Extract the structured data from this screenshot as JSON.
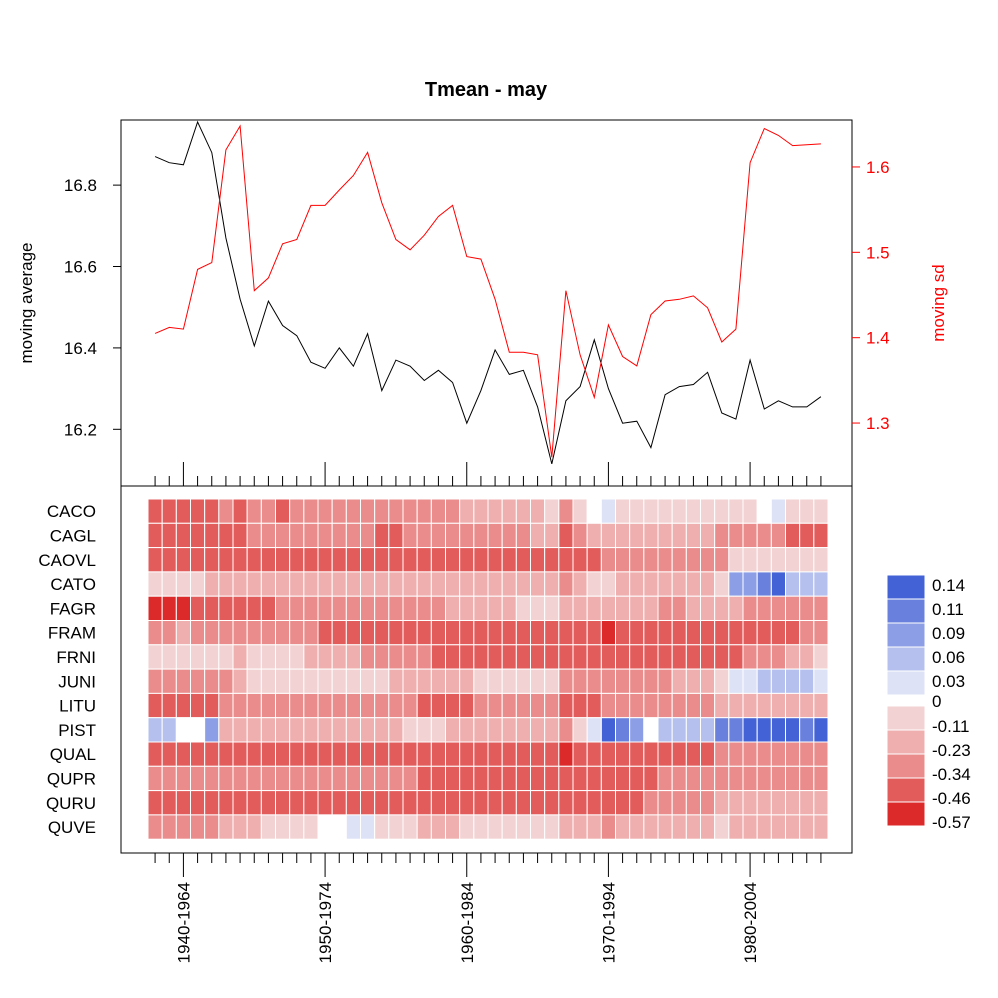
{
  "title": "Tmean - may",
  "colors": {
    "line_mean": "#000000",
    "line_sd": "#ff0000",
    "text_sd": "#ff0000",
    "cell_border": "#ffffff",
    "neg_scale": [
      "#f2d2d2",
      "#efafaf",
      "#ea8c8c",
      "#e35c5c",
      "#dc2a2a"
    ],
    "pos_scale": [
      "#dde2f6",
      "#b5c0ee",
      "#8c9ee5",
      "#6a80dd",
      "#4262d6"
    ],
    "zero": "#ffffff"
  },
  "chart_data": {
    "type": "line+heatmap",
    "top_panel": {
      "type": "line",
      "ylabel_left": "moving average",
      "ylabel_right": "moving sd",
      "ylim_left": [
        16.1,
        16.96
      ],
      "ylim_right": [
        1.245,
        1.655
      ],
      "yticks_left": [
        "16.2",
        "16.4",
        "16.6",
        "16.8"
      ],
      "yticks_right": [
        "1.3",
        "1.4",
        "1.5",
        "1.6"
      ],
      "series": [
        {
          "name": "moving average",
          "axis": "left",
          "values": [
            16.87,
            16.855,
            16.85,
            16.955,
            16.88,
            16.67,
            16.52,
            16.405,
            16.515,
            16.455,
            16.43,
            16.365,
            16.35,
            16.4,
            16.355,
            16.435,
            16.295,
            16.37,
            16.355,
            16.32,
            16.345,
            16.315,
            16.215,
            16.295,
            16.395,
            16.335,
            16.345,
            16.255,
            16.115,
            16.27,
            16.305,
            16.42,
            16.3,
            16.215,
            16.22,
            16.155,
            16.285,
            16.305,
            16.31,
            16.34,
            16.24,
            16.225,
            16.37,
            16.25,
            16.27,
            16.255,
            16.255,
            16.28
          ]
        },
        {
          "name": "moving sd",
          "axis": "right",
          "values": [
            1.405,
            1.412,
            1.41,
            1.48,
            1.488,
            1.62,
            1.648,
            1.455,
            1.47,
            1.51,
            1.515,
            1.555,
            1.555,
            1.573,
            1.59,
            1.617,
            1.558,
            1.515,
            1.503,
            1.52,
            1.542,
            1.555,
            1.495,
            1.492,
            1.445,
            1.383,
            1.383,
            1.38,
            1.26,
            1.455,
            1.38,
            1.33,
            1.415,
            1.378,
            1.367,
            1.427,
            1.443,
            1.445,
            1.449,
            1.435,
            1.395,
            1.41,
            1.605,
            1.645,
            1.637,
            1.625,
            1.626,
            1.627
          ]
        }
      ]
    },
    "heatmap": {
      "rows": [
        "CACO",
        "CAGL",
        "CAOVL",
        "CATO",
        "FAGR",
        "FRAM",
        "FRNI",
        "JUNI",
        "LITU",
        "PIST",
        "QUAL",
        "QUPR",
        "QURU",
        "QUVE"
      ],
      "n_windows": 48,
      "x_labels": [
        "1940-1964",
        "1950-1974",
        "1960-1984",
        "1970-1994",
        "1980-2004"
      ],
      "x_label_windows": [
        2,
        12,
        22,
        32,
        42
      ],
      "legend_labels": [
        "0.14",
        "0.11",
        "0.09",
        "0.06",
        "0.03",
        "0",
        "-0.11",
        "-0.23",
        "-0.34",
        "-0.46",
        "-0.57"
      ],
      "values": [
        [
          -0.4,
          -0.4,
          -0.4,
          -0.4,
          -0.35,
          -0.3,
          -0.35,
          -0.3,
          -0.3,
          -0.35,
          -0.3,
          -0.25,
          -0.25,
          -0.3,
          -0.3,
          -0.25,
          -0.25,
          -0.3,
          -0.3,
          -0.3,
          -0.25,
          -0.25,
          -0.2,
          -0.2,
          -0.2,
          -0.15,
          -0.15,
          -0.12,
          -0.1,
          -0.28,
          -0.1,
          0.0,
          0.02,
          -0.08,
          -0.1,
          -0.1,
          -0.1,
          -0.1,
          -0.08,
          -0.08,
          -0.1,
          -0.05,
          -0.03,
          0.0,
          0.01,
          -0.04,
          -0.06,
          -0.08
        ],
        [
          -0.4,
          -0.4,
          -0.4,
          -0.4,
          -0.35,
          -0.35,
          -0.35,
          -0.3,
          -0.3,
          -0.3,
          -0.3,
          -0.3,
          -0.3,
          -0.3,
          -0.3,
          -0.3,
          -0.35,
          -0.35,
          -0.3,
          -0.3,
          -0.3,
          -0.25,
          -0.25,
          -0.25,
          -0.3,
          -0.25,
          -0.25,
          -0.2,
          -0.2,
          -0.4,
          -0.25,
          -0.2,
          -0.2,
          -0.15,
          -0.2,
          -0.2,
          -0.2,
          -0.2,
          -0.2,
          -0.2,
          -0.25,
          -0.25,
          -0.3,
          -0.3,
          -0.3,
          -0.35,
          -0.35,
          -0.4
        ],
        [
          -0.45,
          -0.45,
          -0.45,
          -0.45,
          -0.4,
          -0.4,
          -0.4,
          -0.35,
          -0.4,
          -0.35,
          -0.35,
          -0.35,
          -0.35,
          -0.35,
          -0.35,
          -0.35,
          -0.35,
          -0.35,
          -0.35,
          -0.35,
          -0.35,
          -0.35,
          -0.35,
          -0.35,
          -0.35,
          -0.35,
          -0.35,
          -0.35,
          -0.35,
          -0.45,
          -0.35,
          -0.35,
          -0.3,
          -0.3,
          -0.3,
          -0.3,
          -0.3,
          -0.3,
          -0.3,
          -0.3,
          -0.25,
          -0.1,
          -0.1,
          -0.1,
          -0.1,
          -0.1,
          -0.1,
          -0.1
        ],
        [
          -0.1,
          -0.1,
          -0.1,
          -0.1,
          -0.15,
          -0.2,
          -0.2,
          -0.15,
          -0.15,
          -0.15,
          -0.15,
          -0.15,
          -0.15,
          -0.15,
          -0.2,
          -0.2,
          -0.15,
          -0.15,
          -0.15,
          -0.15,
          -0.15,
          -0.15,
          -0.15,
          -0.15,
          -0.2,
          -0.2,
          -0.2,
          -0.2,
          -0.2,
          -0.25,
          -0.15,
          -0.1,
          -0.1,
          -0.15,
          -0.15,
          -0.15,
          -0.15,
          -0.2,
          -0.15,
          -0.15,
          -0.1,
          0.08,
          0.09,
          0.11,
          0.12,
          0.06,
          0.05,
          0.04
        ],
        [
          -0.5,
          -0.5,
          -0.5,
          -0.45,
          -0.4,
          -0.45,
          -0.45,
          -0.35,
          -0.35,
          -0.3,
          -0.3,
          -0.3,
          -0.3,
          -0.3,
          -0.3,
          -0.3,
          -0.3,
          -0.25,
          -0.25,
          -0.25,
          -0.25,
          -0.2,
          -0.2,
          -0.15,
          -0.15,
          -0.15,
          -0.1,
          -0.05,
          -0.02,
          -0.2,
          -0.2,
          -0.2,
          -0.2,
          -0.2,
          -0.2,
          -0.2,
          -0.25,
          -0.25,
          -0.2,
          -0.15,
          -0.2,
          -0.2,
          -0.25,
          -0.25,
          -0.25,
          -0.25,
          -0.25,
          -0.3
        ],
        [
          -0.25,
          -0.25,
          -0.2,
          -0.25,
          -0.3,
          -0.3,
          -0.3,
          -0.3,
          -0.3,
          -0.3,
          -0.3,
          -0.3,
          -0.35,
          -0.35,
          -0.35,
          -0.35,
          -0.35,
          -0.35,
          -0.35,
          -0.4,
          -0.4,
          -0.45,
          -0.45,
          -0.45,
          -0.45,
          -0.4,
          -0.4,
          -0.4,
          -0.4,
          -0.45,
          -0.45,
          -0.45,
          -0.5,
          -0.45,
          -0.4,
          -0.4,
          -0.4,
          -0.4,
          -0.4,
          -0.4,
          -0.35,
          -0.4,
          -0.4,
          -0.35,
          -0.35,
          -0.35,
          -0.3,
          -0.3
        ],
        [
          -0.1,
          -0.1,
          -0.1,
          -0.1,
          -0.1,
          -0.1,
          -0.15,
          -0.08,
          -0.1,
          -0.1,
          -0.1,
          -0.15,
          -0.2,
          -0.2,
          -0.2,
          -0.25,
          -0.3,
          -0.3,
          -0.3,
          -0.3,
          -0.35,
          -0.35,
          -0.35,
          -0.4,
          -0.4,
          -0.4,
          -0.4,
          -0.4,
          -0.4,
          -0.45,
          -0.45,
          -0.45,
          -0.45,
          -0.45,
          -0.45,
          -0.45,
          -0.45,
          -0.4,
          -0.45,
          -0.45,
          -0.4,
          -0.35,
          -0.3,
          -0.25,
          -0.25,
          -0.2,
          -0.15,
          -0.1
        ],
        [
          -0.25,
          -0.25,
          -0.25,
          -0.3,
          -0.3,
          -0.25,
          -0.2,
          -0.1,
          -0.05,
          -0.05,
          -0.05,
          -0.05,
          -0.05,
          -0.05,
          -0.03,
          -0.05,
          -0.1,
          -0.15,
          -0.2,
          -0.15,
          -0.15,
          -0.15,
          -0.15,
          -0.1,
          -0.1,
          -0.1,
          -0.1,
          -0.1,
          -0.1,
          -0.3,
          -0.3,
          -0.3,
          -0.3,
          -0.3,
          -0.3,
          -0.25,
          -0.25,
          -0.2,
          -0.2,
          -0.2,
          -0.1,
          0.02,
          0.03,
          0.06,
          0.06,
          0.05,
          0.04,
          0.03
        ],
        [
          -0.35,
          -0.35,
          -0.35,
          -0.4,
          -0.35,
          -0.3,
          -0.3,
          -0.25,
          -0.25,
          -0.25,
          -0.25,
          -0.3,
          -0.3,
          -0.3,
          -0.3,
          -0.3,
          -0.3,
          -0.3,
          -0.3,
          -0.35,
          -0.35,
          -0.35,
          -0.35,
          -0.3,
          -0.3,
          -0.3,
          -0.3,
          -0.3,
          -0.3,
          -0.35,
          -0.35,
          -0.35,
          -0.3,
          -0.3,
          -0.25,
          -0.25,
          -0.25,
          -0.25,
          -0.3,
          -0.25,
          -0.2,
          -0.2,
          -0.2,
          -0.2,
          -0.2,
          -0.2,
          -0.15,
          -0.15
        ],
        [
          0.04,
          0.04,
          0.0,
          0.0,
          0.08,
          -0.15,
          -0.15,
          -0.15,
          -0.15,
          -0.15,
          -0.15,
          -0.15,
          -0.15,
          -0.15,
          -0.15,
          -0.15,
          -0.15,
          -0.15,
          -0.1,
          -0.1,
          -0.1,
          -0.15,
          -0.15,
          -0.2,
          -0.2,
          -0.2,
          -0.2,
          -0.2,
          -0.2,
          -0.25,
          -0.05,
          0.03,
          0.13,
          0.1,
          0.08,
          0.0,
          0.05,
          0.05,
          0.06,
          0.06,
          0.1,
          0.11,
          0.13,
          0.14,
          0.13,
          0.12,
          0.11,
          0.14
        ],
        [
          -0.35,
          -0.35,
          -0.35,
          -0.35,
          -0.35,
          -0.4,
          -0.4,
          -0.35,
          -0.35,
          -0.35,
          -0.35,
          -0.35,
          -0.35,
          -0.4,
          -0.4,
          -0.4,
          -0.4,
          -0.4,
          -0.4,
          -0.4,
          -0.45,
          -0.45,
          -0.45,
          -0.45,
          -0.4,
          -0.4,
          -0.4,
          -0.4,
          -0.4,
          -0.57,
          -0.45,
          -0.45,
          -0.45,
          -0.4,
          -0.4,
          -0.4,
          -0.35,
          -0.35,
          -0.35,
          -0.35,
          -0.3,
          -0.3,
          -0.3,
          -0.3,
          -0.3,
          -0.3,
          -0.3,
          -0.3
        ],
        [
          -0.3,
          -0.3,
          -0.3,
          -0.3,
          -0.3,
          -0.3,
          -0.3,
          -0.3,
          -0.3,
          -0.3,
          -0.3,
          -0.3,
          -0.3,
          -0.3,
          -0.3,
          -0.3,
          -0.3,
          -0.3,
          -0.3,
          -0.35,
          -0.35,
          -0.35,
          -0.35,
          -0.35,
          -0.35,
          -0.35,
          -0.35,
          -0.35,
          -0.35,
          -0.4,
          -0.4,
          -0.4,
          -0.4,
          -0.35,
          -0.35,
          -0.35,
          -0.3,
          -0.3,
          -0.3,
          -0.3,
          -0.25,
          -0.25,
          -0.25,
          -0.25,
          -0.25,
          -0.25,
          -0.25,
          -0.25
        ],
        [
          -0.45,
          -0.45,
          -0.45,
          -0.45,
          -0.4,
          -0.4,
          -0.4,
          -0.35,
          -0.35,
          -0.35,
          -0.35,
          -0.35,
          -0.35,
          -0.35,
          -0.35,
          -0.35,
          -0.35,
          -0.35,
          -0.4,
          -0.4,
          -0.4,
          -0.35,
          -0.35,
          -0.35,
          -0.35,
          -0.35,
          -0.35,
          -0.35,
          -0.35,
          -0.45,
          -0.45,
          -0.4,
          -0.4,
          -0.4,
          -0.35,
          -0.3,
          -0.3,
          -0.25,
          -0.25,
          -0.25,
          -0.2,
          -0.2,
          -0.2,
          -0.2,
          -0.2,
          -0.2,
          -0.2,
          -0.2
        ],
        [
          -0.25,
          -0.25,
          -0.25,
          -0.25,
          -0.25,
          -0.2,
          -0.2,
          -0.15,
          -0.1,
          -0.1,
          -0.05,
          -0.05,
          0.0,
          0.0,
          0.02,
          0.02,
          -0.05,
          -0.05,
          -0.1,
          -0.15,
          -0.15,
          -0.15,
          -0.1,
          -0.1,
          -0.05,
          -0.05,
          -0.05,
          -0.05,
          -0.1,
          -0.2,
          -0.2,
          -0.2,
          -0.25,
          -0.2,
          -0.2,
          -0.15,
          -0.15,
          -0.15,
          -0.15,
          -0.15,
          -0.1,
          -0.15,
          -0.15,
          -0.15,
          -0.15,
          -0.15,
          -0.15,
          -0.15
        ]
      ]
    }
  }
}
